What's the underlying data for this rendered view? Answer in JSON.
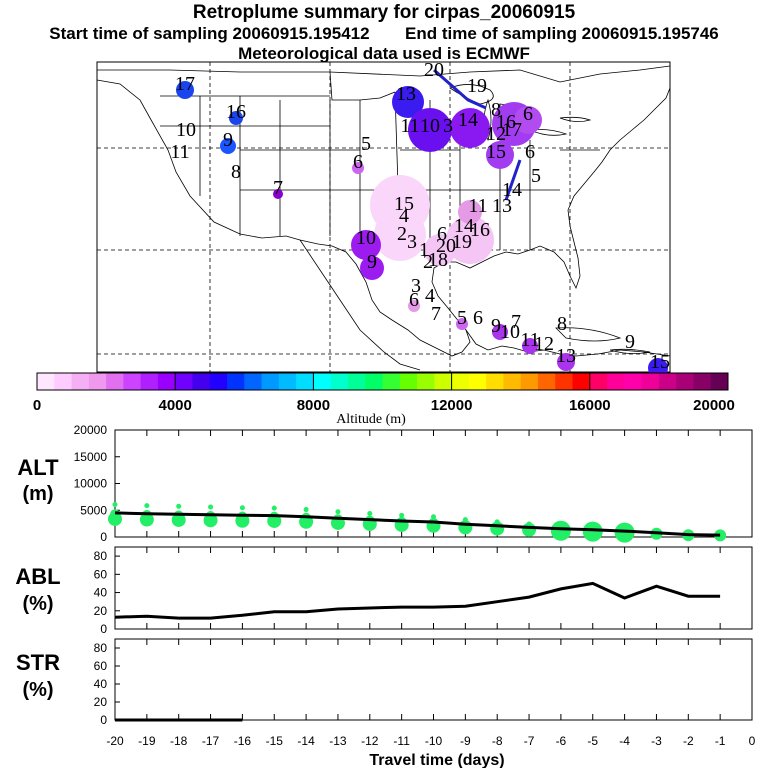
{
  "title": "Retroplume summary for cirpas_20060915",
  "subtitle_start": "Start time of sampling 20060915.195412",
  "subtitle_end": "End time of sampling 20060915.195746",
  "subtitle_met": "Meteorological data used is ECMWF",
  "colorbar": {
    "label": "Altitude (m)",
    "ticks": [
      "0",
      "4000",
      "8000",
      "12000",
      "16000",
      "20000"
    ],
    "colors": [
      "#ffe6ff",
      "#ffccff",
      "#f5b0f5",
      "#ee99ee",
      "#e070f0",
      "#cc44ff",
      "#b020ff",
      "#9900ff",
      "#7000ff",
      "#4400ee",
      "#2200ff",
      "#0033ff",
      "#0066ff",
      "#0099ff",
      "#00bbff",
      "#00ddff",
      "#00ffff",
      "#00ffcc",
      "#00ff99",
      "#00ff66",
      "#33ff33",
      "#66ff00",
      "#99ff00",
      "#ccff00",
      "#eeff00",
      "#ffff00",
      "#ffdd00",
      "#ffbb00",
      "#ff9900",
      "#ff6600",
      "#ff3300",
      "#ff0000",
      "#ff0066",
      "#ff0099",
      "#ff00aa",
      "#ee0099",
      "#cc0088",
      "#aa0077",
      "#880066",
      "#660055"
    ]
  },
  "map_labels": [
    {
      "t": "17",
      "x": 185,
      "y": 90,
      "c": "#0044ee"
    },
    {
      "t": "16",
      "x": 236,
      "y": 118,
      "c": "#0033dd"
    },
    {
      "t": "10",
      "x": 186,
      "y": 136,
      "c": "#1144ff"
    },
    {
      "t": "9",
      "x": 228,
      "y": 146,
      "c": "#1155ff"
    },
    {
      "t": "11",
      "x": 180,
      "y": 158,
      "c": "#1144ff"
    },
    {
      "t": "8",
      "x": 236,
      "y": 178,
      "c": "#7700cc"
    },
    {
      "t": "7",
      "x": 278,
      "y": 194,
      "c": "#8800cc"
    },
    {
      "t": "5",
      "x": 366,
      "y": 150,
      "c": "#cc66ee"
    },
    {
      "t": "6",
      "x": 358,
      "y": 168,
      "c": "#cc66ee"
    },
    {
      "t": "20",
      "x": 434,
      "y": 76,
      "c": "#3300ee"
    },
    {
      "t": "19",
      "x": 477,
      "y": 92,
      "c": "#3300ee"
    },
    {
      "t": "13",
      "x": 406,
      "y": 100,
      "c": "#3300ee"
    },
    {
      "t": "11",
      "x": 410,
      "y": 132,
      "c": "#6600ee"
    },
    {
      "t": "10",
      "x": 430,
      "y": 132,
      "c": "#7700ee"
    },
    {
      "t": "3",
      "x": 448,
      "y": 132,
      "c": "#8800ee"
    },
    {
      "t": "14",
      "x": 468,
      "y": 126,
      "c": "#8800ee"
    },
    {
      "t": "8",
      "x": 496,
      "y": 116,
      "c": "#aa33ee"
    },
    {
      "t": "16",
      "x": 506,
      "y": 128,
      "c": "#aa33ee"
    },
    {
      "t": "6",
      "x": 528,
      "y": 120,
      "c": "#bb44ee"
    },
    {
      "t": "12",
      "x": 496,
      "y": 140,
      "c": "#aa33ee"
    },
    {
      "t": "17",
      "x": 512,
      "y": 136,
      "c": "#aa33ee"
    },
    {
      "t": "15",
      "x": 496,
      "y": 158,
      "c": "#aa33ee"
    },
    {
      "t": "6",
      "x": 530,
      "y": 158,
      "c": "#bb44ee"
    },
    {
      "t": "5",
      "x": 536,
      "y": 182,
      "c": "#3355ff"
    },
    {
      "t": "14",
      "x": 512,
      "y": 196,
      "c": "#3355ff"
    },
    {
      "t": "13",
      "x": 502,
      "y": 212,
      "c": "#cc66ee"
    },
    {
      "t": "11",
      "x": 478,
      "y": 212,
      "c": "#cc66ee"
    },
    {
      "t": "15",
      "x": 404,
      "y": 210,
      "c": "#dd99ee"
    },
    {
      "t": "4",
      "x": 404,
      "y": 222,
      "c": "#dd99ee"
    },
    {
      "t": "14",
      "x": 464,
      "y": 232,
      "c": "#cc66ee"
    },
    {
      "t": "16",
      "x": 480,
      "y": 236,
      "c": "#cc66ee"
    },
    {
      "t": "6",
      "x": 442,
      "y": 240,
      "c": "#dd99ee"
    },
    {
      "t": "2",
      "x": 402,
      "y": 240,
      "c": "#dd99ee"
    },
    {
      "t": "10",
      "x": 366,
      "y": 244,
      "c": "#8800ee"
    },
    {
      "t": "3",
      "x": 412,
      "y": 248,
      "c": "#dd99ee"
    },
    {
      "t": "19",
      "x": 462,
      "y": 248,
      "c": "#cc66ee"
    },
    {
      "t": "20",
      "x": 446,
      "y": 252,
      "c": "#cc66ee"
    },
    {
      "t": "1",
      "x": 424,
      "y": 256,
      "c": "#dd99ee"
    },
    {
      "t": "18",
      "x": 438,
      "y": 266,
      "c": "#cc66ee"
    },
    {
      "t": "9",
      "x": 372,
      "y": 268,
      "c": "#8800ee"
    },
    {
      "t": "2",
      "x": 428,
      "y": 268,
      "c": "#dd99ee"
    },
    {
      "t": "3",
      "x": 416,
      "y": 292,
      "c": "#dd99ee"
    },
    {
      "t": "4",
      "x": 430,
      "y": 302,
      "c": "#dd99ee"
    },
    {
      "t": "6",
      "x": 414,
      "y": 306,
      "c": "#dd99ee"
    },
    {
      "t": "7",
      "x": 436,
      "y": 320,
      "c": "#dd99ee"
    },
    {
      "t": "5",
      "x": 462,
      "y": 324,
      "c": "#cc66ee"
    },
    {
      "t": "6",
      "x": 478,
      "y": 324,
      "c": "#cc66ee"
    },
    {
      "t": "7",
      "x": 516,
      "y": 328,
      "c": "#aa33ee"
    },
    {
      "t": "8",
      "x": 562,
      "y": 330,
      "c": "#cc66ee"
    },
    {
      "t": "9",
      "x": 496,
      "y": 332,
      "c": "#aa33ee"
    },
    {
      "t": "10",
      "x": 510,
      "y": 338,
      "c": "#aa33ee"
    },
    {
      "t": "11",
      "x": 530,
      "y": 346,
      "c": "#aa33ee"
    },
    {
      "t": "12",
      "x": 544,
      "y": 350,
      "c": "#aa33ee"
    },
    {
      "t": "13",
      "x": 566,
      "y": 362,
      "c": "#aa33ee"
    },
    {
      "t": "9",
      "x": 630,
      "y": 348,
      "c": "#aa33ee"
    },
    {
      "t": "15",
      "x": 660,
      "y": 368,
      "c": "#3300ee"
    }
  ],
  "chart_data": [
    {
      "type": "line",
      "panel": "ALT",
      "ylabel": "ALT (m)",
      "ylim": [
        0,
        20000
      ],
      "yticks": [
        "0",
        "5000",
        "10000",
        "15000",
        "20000"
      ],
      "x": [
        -20,
        -19,
        -18,
        -17,
        -16,
        -15,
        -14,
        -13,
        -12,
        -11,
        -10,
        -9,
        -8,
        -7,
        -6,
        -5,
        -4,
        -3,
        -2,
        -1
      ],
      "values": [
        4500,
        4350,
        4250,
        4150,
        4050,
        4000,
        3800,
        3500,
        3250,
        3000,
        2800,
        2400,
        2100,
        1800,
        1550,
        1350,
        1100,
        800,
        450,
        350
      ],
      "scatter_note": "green plume dots"
    },
    {
      "type": "line",
      "panel": "ABL",
      "ylabel": "ABL (%)",
      "ylim": [
        0,
        90
      ],
      "yticks": [
        "0",
        "20",
        "40",
        "60",
        "80"
      ],
      "x": [
        -20,
        -19,
        -18,
        -17,
        -16,
        -15,
        -14,
        -13,
        -12,
        -11,
        -10,
        -9,
        -8,
        -7,
        -6,
        -5,
        -4,
        -3,
        -2,
        -1
      ],
      "values": [
        13,
        14,
        12,
        12,
        15,
        19,
        19,
        22,
        23,
        24,
        24,
        25,
        30,
        35,
        44,
        50,
        34,
        47,
        36,
        36
      ]
    },
    {
      "type": "line",
      "panel": "STR",
      "ylabel": "STR (%)",
      "ylim": [
        0,
        90
      ],
      "yticks": [
        "0",
        "20",
        "40",
        "60",
        "80"
      ],
      "x": [
        -20,
        -19,
        -18,
        -17,
        -16
      ],
      "values": [
        0,
        0,
        0,
        0,
        0
      ]
    }
  ],
  "x_axis": {
    "label": "Travel time (days)",
    "ticks": [
      "-20",
      "-19",
      "-18",
      "-17",
      "-16",
      "-15",
      "-14",
      "-13",
      "-12",
      "-11",
      "-10",
      "-9",
      "-8",
      "-7",
      "-6",
      "-5",
      "-4",
      "-3",
      "-2",
      "-1",
      "0"
    ]
  },
  "panel_labels": {
    "alt_1": "ALT",
    "alt_2": "(m)",
    "abl_1": "ABL",
    "abl_2": "(%)",
    "str_1": "STR",
    "str_2": "(%)"
  }
}
